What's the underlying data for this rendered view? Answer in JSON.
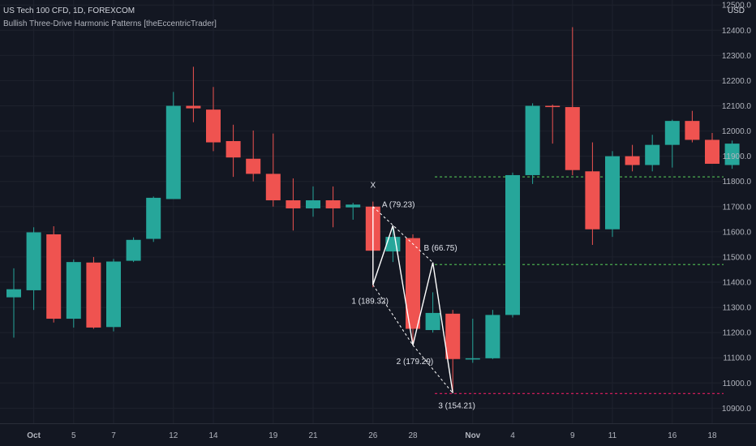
{
  "header": {
    "title": "US Tech 100 CFD, 1D, FOREXCOM",
    "subtitle": "Bullish Three-Drive Harmonic Patterns [theEccentricTrader]",
    "currency": "USD"
  },
  "colors": {
    "background": "#131722",
    "grid": "#1e222d",
    "up": "#26a69a",
    "down": "#ef5350",
    "text": "#b2b5be",
    "pattern": "#ffffff",
    "level_green": "#4caf50",
    "level_red": "#e91e63"
  },
  "chart_data": {
    "type": "candlestick",
    "title": "US Tech 100 CFD, 1D, FOREXCOM",
    "ylabel": "USD",
    "ylim": [
      10840,
      12520
    ],
    "grid": true,
    "x_tick_labels": [
      {
        "label": "Oct",
        "index": 1
      },
      {
        "label": "5",
        "index": 3
      },
      {
        "label": "7",
        "index": 5
      },
      {
        "label": "12",
        "index": 8
      },
      {
        "label": "14",
        "index": 10
      },
      {
        "label": "19",
        "index": 13
      },
      {
        "label": "21",
        "index": 15
      },
      {
        "label": "26",
        "index": 18
      },
      {
        "label": "28",
        "index": 20
      },
      {
        "label": "Nov",
        "index": 23
      },
      {
        "label": "4",
        "index": 25
      },
      {
        "label": "9",
        "index": 28
      },
      {
        "label": "11",
        "index": 30
      },
      {
        "label": "16",
        "index": 33
      },
      {
        "label": "18",
        "index": 35
      }
    ],
    "y_tick_labels": [
      "12500.0",
      "12400.0",
      "12300.0",
      "12200.0",
      "12100.0",
      "12000.0",
      "11900.0",
      "11800.0",
      "11700.0",
      "11600.0",
      "11500.0",
      "11400.0",
      "11300.0",
      "11200.0",
      "11100.0",
      "11000.0",
      "10900.0"
    ],
    "y_ticks": [
      12500,
      12400,
      12300,
      12200,
      12100,
      12000,
      11900,
      11800,
      11700,
      11600,
      11500,
      11400,
      11300,
      11200,
      11100,
      11000,
      10900
    ],
    "candles": [
      {
        "o": 11340,
        "h": 11455,
        "l": 11180,
        "c": 11372
      },
      {
        "o": 11368,
        "h": 11618,
        "l": 11290,
        "c": 11598
      },
      {
        "o": 11590,
        "h": 11622,
        "l": 11240,
        "c": 11255
      },
      {
        "o": 11255,
        "h": 11490,
        "l": 11220,
        "c": 11480
      },
      {
        "o": 11478,
        "h": 11500,
        "l": 11215,
        "c": 11220
      },
      {
        "o": 11222,
        "h": 11492,
        "l": 11205,
        "c": 11482
      },
      {
        "o": 11485,
        "h": 11578,
        "l": 11480,
        "c": 11568
      },
      {
        "o": 11572,
        "h": 11740,
        "l": 11560,
        "c": 11735
      },
      {
        "o": 11730,
        "h": 12155,
        "l": 11730,
        "c": 12100
      },
      {
        "o": 12100,
        "h": 12255,
        "l": 12035,
        "c": 12090
      },
      {
        "o": 12085,
        "h": 12175,
        "l": 11920,
        "c": 11955
      },
      {
        "o": 11960,
        "h": 12025,
        "l": 11818,
        "c": 11895
      },
      {
        "o": 11890,
        "h": 12002,
        "l": 11800,
        "c": 11830
      },
      {
        "o": 11830,
        "h": 11990,
        "l": 11700,
        "c": 11725
      },
      {
        "o": 11725,
        "h": 11812,
        "l": 11605,
        "c": 11693
      },
      {
        "o": 11693,
        "h": 11780,
        "l": 11660,
        "c": 11725
      },
      {
        "o": 11725,
        "h": 11780,
        "l": 11618,
        "c": 11693
      },
      {
        "o": 11697,
        "h": 11715,
        "l": 11648,
        "c": 11708
      },
      {
        "o": 11700,
        "h": 11720,
        "l": 11380,
        "c": 11525
      },
      {
        "o": 11522,
        "h": 11625,
        "l": 11480,
        "c": 11580
      },
      {
        "o": 11575,
        "h": 11590,
        "l": 11150,
        "c": 11215
      },
      {
        "o": 11210,
        "h": 11360,
        "l": 11200,
        "c": 11278
      },
      {
        "o": 11275,
        "h": 11290,
        "l": 10960,
        "c": 11095
      },
      {
        "o": 11095,
        "h": 11255,
        "l": 11080,
        "c": 11098
      },
      {
        "o": 11098,
        "h": 11290,
        "l": 11095,
        "c": 11270
      },
      {
        "o": 11270,
        "h": 11835,
        "l": 11260,
        "c": 11825
      },
      {
        "o": 11825,
        "h": 12110,
        "l": 11790,
        "c": 12100
      },
      {
        "o": 12100,
        "h": 12105,
        "l": 11950,
        "c": 12095
      },
      {
        "o": 12095,
        "h": 12412,
        "l": 11825,
        "c": 11845
      },
      {
        "o": 11840,
        "h": 11955,
        "l": 11548,
        "c": 11610
      },
      {
        "o": 11610,
        "h": 11920,
        "l": 11580,
        "c": 11900
      },
      {
        "o": 11900,
        "h": 11945,
        "l": 11840,
        "c": 11865
      },
      {
        "o": 11865,
        "h": 11985,
        "l": 11840,
        "c": 11945
      },
      {
        "o": 11945,
        "h": 12045,
        "l": 11855,
        "c": 12040
      },
      {
        "o": 12040,
        "h": 12080,
        "l": 11955,
        "c": 11965
      },
      {
        "o": 11965,
        "h": 11992,
        "l": 11870,
        "c": 11870
      },
      {
        "o": 11865,
        "h": 11962,
        "l": 11850,
        "c": 11950
      }
    ],
    "pattern": {
      "lines": [
        [
          [
            18,
            11700
          ],
          [
            18,
            11390
          ],
          [
            19,
            11625
          ],
          [
            20,
            11150
          ],
          [
            21,
            11478
          ],
          [
            22,
            10960
          ]
        ]
      ],
      "dashed": [
        [
          [
            18,
            11700
          ],
          [
            21,
            11478
          ]
        ],
        [
          [
            18,
            11390
          ],
          [
            20,
            11150
          ]
        ],
        [
          [
            20,
            11150
          ],
          [
            22,
            10960
          ]
        ]
      ],
      "labels": [
        {
          "text": "X",
          "i": 18,
          "v": 11775,
          "anchor": "middle"
        },
        {
          "text": "A (79.23)",
          "i": 18.45,
          "v": 11698,
          "anchor": "start"
        },
        {
          "text": "B (66.75)",
          "i": 20.55,
          "v": 11525,
          "anchor": "start"
        },
        {
          "text": "1 (189.32)",
          "i": 17.85,
          "v": 11315,
          "anchor": "middle"
        },
        {
          "text": "2 (179.29)",
          "i": 20.1,
          "v": 11075,
          "anchor": "middle"
        },
        {
          "text": "3 (154.21)",
          "i": 22.2,
          "v": 10900,
          "anchor": "middle"
        }
      ]
    },
    "levels": [
      {
        "value": 11818,
        "from": 21.1,
        "color": "#4caf50"
      },
      {
        "value": 11470,
        "from": 21.1,
        "color": "#4caf50"
      },
      {
        "value": 10958,
        "from": 21.1,
        "color": "#e91e63"
      }
    ]
  }
}
